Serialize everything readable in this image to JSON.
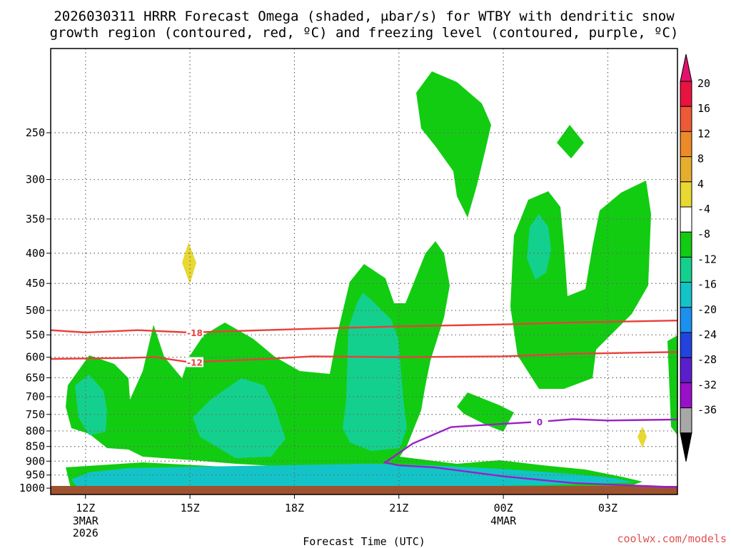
{
  "title": {
    "line1": "2026030311 HRRR Forecast Omega (shaded, μbar/s) for WTBY with dendritic snow",
    "line2": "growth region (contoured, red, ºC) and freezing level (contoured, purple, ºC)"
  },
  "credit": "coolwx.com/models",
  "chart_data": {
    "type": "time-height contour",
    "xlabel": "Forecast Time (UTC)",
    "ylabel": "",
    "x_ticks": [
      {
        "label": "12Z",
        "sub": [
          "3MAR",
          "2026"
        ],
        "hour": 0
      },
      {
        "label": "15Z",
        "sub": [],
        "hour": 3
      },
      {
        "label": "18Z",
        "sub": [],
        "hour": 6
      },
      {
        "label": "21Z",
        "sub": [],
        "hour": 9
      },
      {
        "label": "00Z",
        "sub": [
          "4MAR"
        ],
        "hour": 12
      },
      {
        "label": "03Z",
        "sub": [],
        "hour": 15
      }
    ],
    "xlim_hours": [
      -1,
      17
    ],
    "y_ticks": [
      250,
      300,
      350,
      400,
      450,
      500,
      550,
      600,
      650,
      700,
      750,
      800,
      850,
      900,
      950,
      1000
    ],
    "ylim_hpa": [
      180,
      1025
    ],
    "y_scale": "pressure (log)",
    "grid": "dotted",
    "colorbar": {
      "labels": [
        "20",
        "16",
        "12",
        "8",
        "4",
        "-4",
        "-8",
        "-12",
        "-16",
        "-20",
        "-24",
        "-28",
        "-32",
        "-36"
      ],
      "colors": [
        "#e8133f",
        "#ee5a35",
        "#eb8a27",
        "#e7ae2e",
        "#e8d832",
        "#ffffff",
        "#12cc12",
        "#14d08e",
        "#12c4c8",
        "#1c90ee",
        "#2244dd",
        "#5a1ecc",
        "#9810c8",
        "#a8a8a8"
      ],
      "top_cap_color": "#e0126e",
      "bottom_cap_color": "#000000"
    },
    "contours": [
      {
        "name": "-18",
        "color": "#e8403a",
        "level_c": -18,
        "points": [
          [
            -1.0,
            540
          ],
          [
            0.0,
            545
          ],
          [
            1.5,
            540
          ],
          [
            3.0,
            545
          ],
          [
            6.0,
            538
          ],
          [
            9.0,
            532
          ],
          [
            12.0,
            528
          ],
          [
            14.0,
            524
          ],
          [
            17.0,
            520
          ]
        ],
        "label_at": 3.1
      },
      {
        "name": "-12",
        "color": "#e8403a",
        "level_c": -12,
        "points": [
          [
            -1.0,
            604
          ],
          [
            1.0,
            602
          ],
          [
            2.0,
            600
          ],
          [
            3.0,
            612
          ],
          [
            5.0,
            605
          ],
          [
            6.5,
            598
          ],
          [
            9.0,
            600
          ],
          [
            12.0,
            598
          ],
          [
            14.0,
            592
          ],
          [
            17.0,
            588
          ]
        ],
        "label_at": 3.1
      },
      {
        "name": "0",
        "color": "#9a1fc8",
        "level_c": 0,
        "points": [
          [
            17.0,
            765
          ],
          [
            15.0,
            768
          ],
          [
            14.0,
            764
          ],
          [
            13.0,
            772
          ],
          [
            12.0,
            778
          ],
          [
            10.5,
            788
          ],
          [
            9.4,
            840
          ],
          [
            8.6,
            905
          ],
          [
            9.0,
            915
          ],
          [
            10.0,
            922
          ],
          [
            12.0,
            955
          ],
          [
            14.0,
            980
          ],
          [
            17.0,
            997
          ]
        ],
        "label_at": 13.0
      }
    ]
  }
}
